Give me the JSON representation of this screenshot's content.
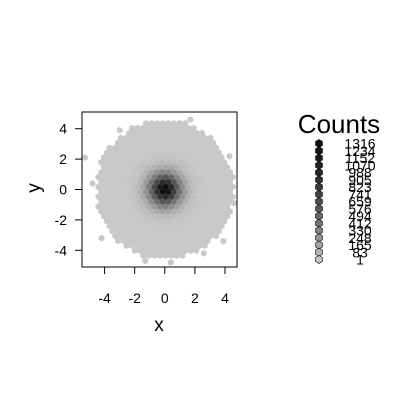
{
  "chart_data": {
    "type": "heatmap",
    "subtype": "hexbin",
    "title": "",
    "xlabel": "x",
    "ylabel": "y",
    "xlim": [
      -5.5,
      4.8
    ],
    "ylim": [
      -5.1,
      5.1
    ],
    "x_ticks": [
      -4,
      -2,
      0,
      2,
      4
    ],
    "y_ticks": [
      4,
      2,
      0,
      -2,
      -4
    ],
    "x_tick_labels": [
      "-4",
      "-2",
      "0",
      "2",
      "4"
    ],
    "y_tick_labels": [
      "4",
      "2",
      "0",
      "-2",
      "-4"
    ],
    "grid": false,
    "hex_radius": 0.215,
    "density_sigma": 1.0,
    "distribution_extent": 4.6,
    "outer_hexes": [
      [
        -5.3,
        2.1
      ],
      [
        4.3,
        2.2
      ],
      [
        -4.2,
        -3.2
      ],
      [
        3.9,
        -3.4
      ],
      [
        1.7,
        4.6
      ],
      [
        -1.3,
        -4.7
      ],
      [
        4.6,
        -0.9
      ],
      [
        -4.8,
        0.4
      ],
      [
        0.4,
        -4.8
      ],
      [
        2.6,
        -4.2
      ],
      [
        -3.0,
        3.9
      ]
    ],
    "color_ramp": {
      "low": "#c8c8c8",
      "high": "#0a0a0a"
    },
    "legend": {
      "title": "Counts",
      "position": "right",
      "labels": [
        "1316",
        "1234",
        "1152",
        "1070",
        "988",
        "905",
        "823",
        "741",
        "659",
        "576",
        "494",
        "412",
        "330",
        "248",
        "165",
        "83",
        "1"
      ],
      "colors": [
        "#111111",
        "#151515",
        "#1b1b1b",
        "#212121",
        "#282828",
        "#303030",
        "#393939",
        "#434343",
        "#4e4e4e",
        "#5a5a5a",
        "#676767",
        "#757575",
        "#848484",
        "#939393",
        "#a3a3a3",
        "#b3b3b3",
        "#c6c6c6"
      ]
    }
  }
}
